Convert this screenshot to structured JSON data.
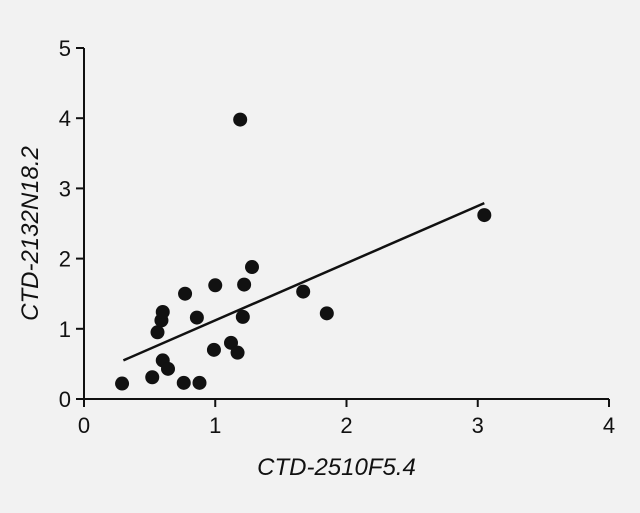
{
  "chart_data": {
    "type": "scatter",
    "title": "",
    "xlabel": "CTD-2510F5.4",
    "ylabel": "CTD-2132N18.2",
    "xlim": [
      0,
      4
    ],
    "ylim": [
      0,
      5
    ],
    "x_ticks": [
      0,
      1,
      2,
      3,
      4
    ],
    "y_ticks": [
      0,
      1,
      2,
      3,
      4,
      5
    ],
    "x_tick_labels": [
      "0",
      "1",
      "2",
      "3",
      "4"
    ],
    "y_tick_labels": [
      "0",
      "1",
      "2",
      "3",
      "4",
      "5"
    ],
    "grid": false,
    "points": [
      {
        "x": 0.29,
        "y": 0.22
      },
      {
        "x": 0.52,
        "y": 0.31
      },
      {
        "x": 0.56,
        "y": 0.95
      },
      {
        "x": 0.59,
        "y": 1.12
      },
      {
        "x": 0.6,
        "y": 1.24
      },
      {
        "x": 0.6,
        "y": 0.55
      },
      {
        "x": 0.64,
        "y": 0.43
      },
      {
        "x": 0.76,
        "y": 0.23
      },
      {
        "x": 0.77,
        "y": 1.5
      },
      {
        "x": 0.86,
        "y": 1.16
      },
      {
        "x": 0.88,
        "y": 0.23
      },
      {
        "x": 0.99,
        "y": 0.7
      },
      {
        "x": 1.0,
        "y": 1.62
      },
      {
        "x": 1.12,
        "y": 0.8
      },
      {
        "x": 1.17,
        "y": 0.66
      },
      {
        "x": 1.19,
        "y": 3.98
      },
      {
        "x": 1.21,
        "y": 1.17
      },
      {
        "x": 1.22,
        "y": 1.63
      },
      {
        "x": 1.28,
        "y": 1.88
      },
      {
        "x": 1.67,
        "y": 1.53
      },
      {
        "x": 1.85,
        "y": 1.22
      },
      {
        "x": 3.05,
        "y": 2.62
      }
    ],
    "trendline": {
      "x": [
        0.3,
        3.05
      ],
      "y": [
        0.55,
        2.79
      ]
    },
    "colors": {
      "points": "#111111",
      "line": "#111111",
      "axes": "#111111",
      "background": "#f2f2f2"
    }
  }
}
